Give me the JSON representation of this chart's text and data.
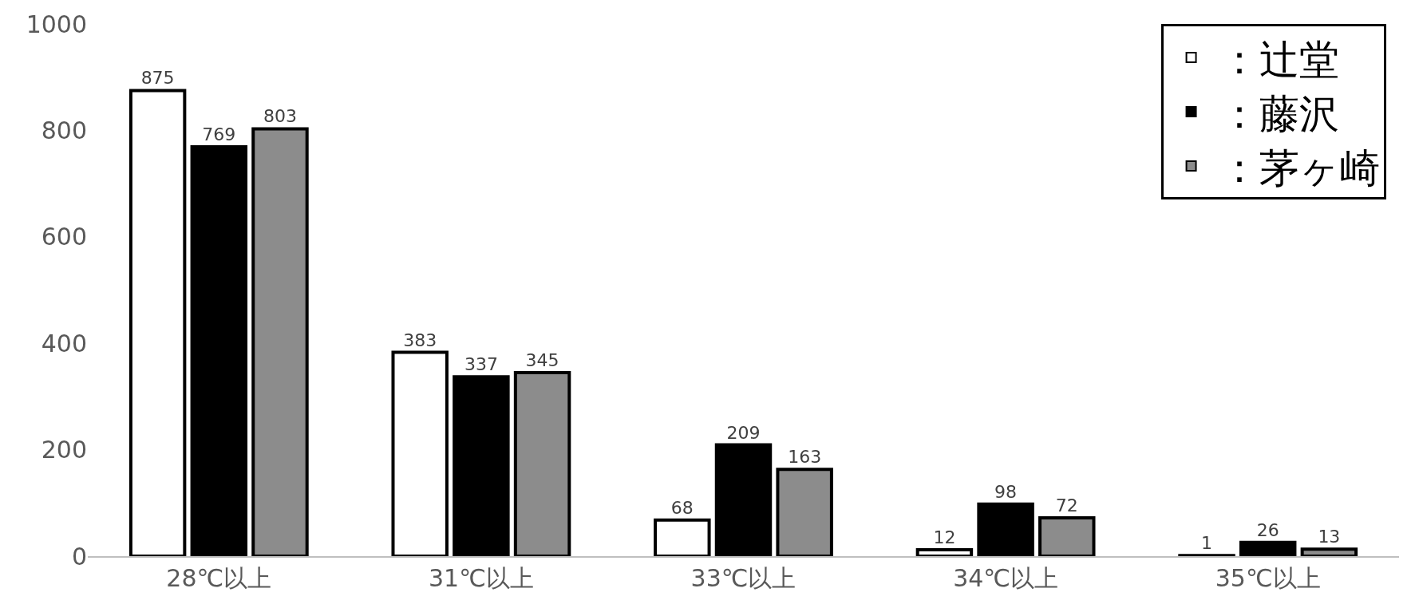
{
  "chart_data": {
    "type": "bar",
    "categories": [
      "28℃以上",
      "31℃以上",
      "33℃以上",
      "34℃以上",
      "35℃以上"
    ],
    "series": [
      {
        "name": "：辻堂",
        "color": "#ffffff",
        "values": [
          875,
          383,
          68,
          12,
          1
        ]
      },
      {
        "name": "：藤沢",
        "color": "#000000",
        "values": [
          769,
          337,
          209,
          98,
          26
        ]
      },
      {
        "name": "：茅ヶ崎",
        "color": "#8c8c8c",
        "values": [
          803,
          345,
          163,
          72,
          13
        ]
      }
    ],
    "ylim": [
      0,
      1000
    ],
    "yticks": [
      0,
      200,
      400,
      600,
      800,
      1000
    ],
    "legend": "top right",
    "data_labels": true
  }
}
